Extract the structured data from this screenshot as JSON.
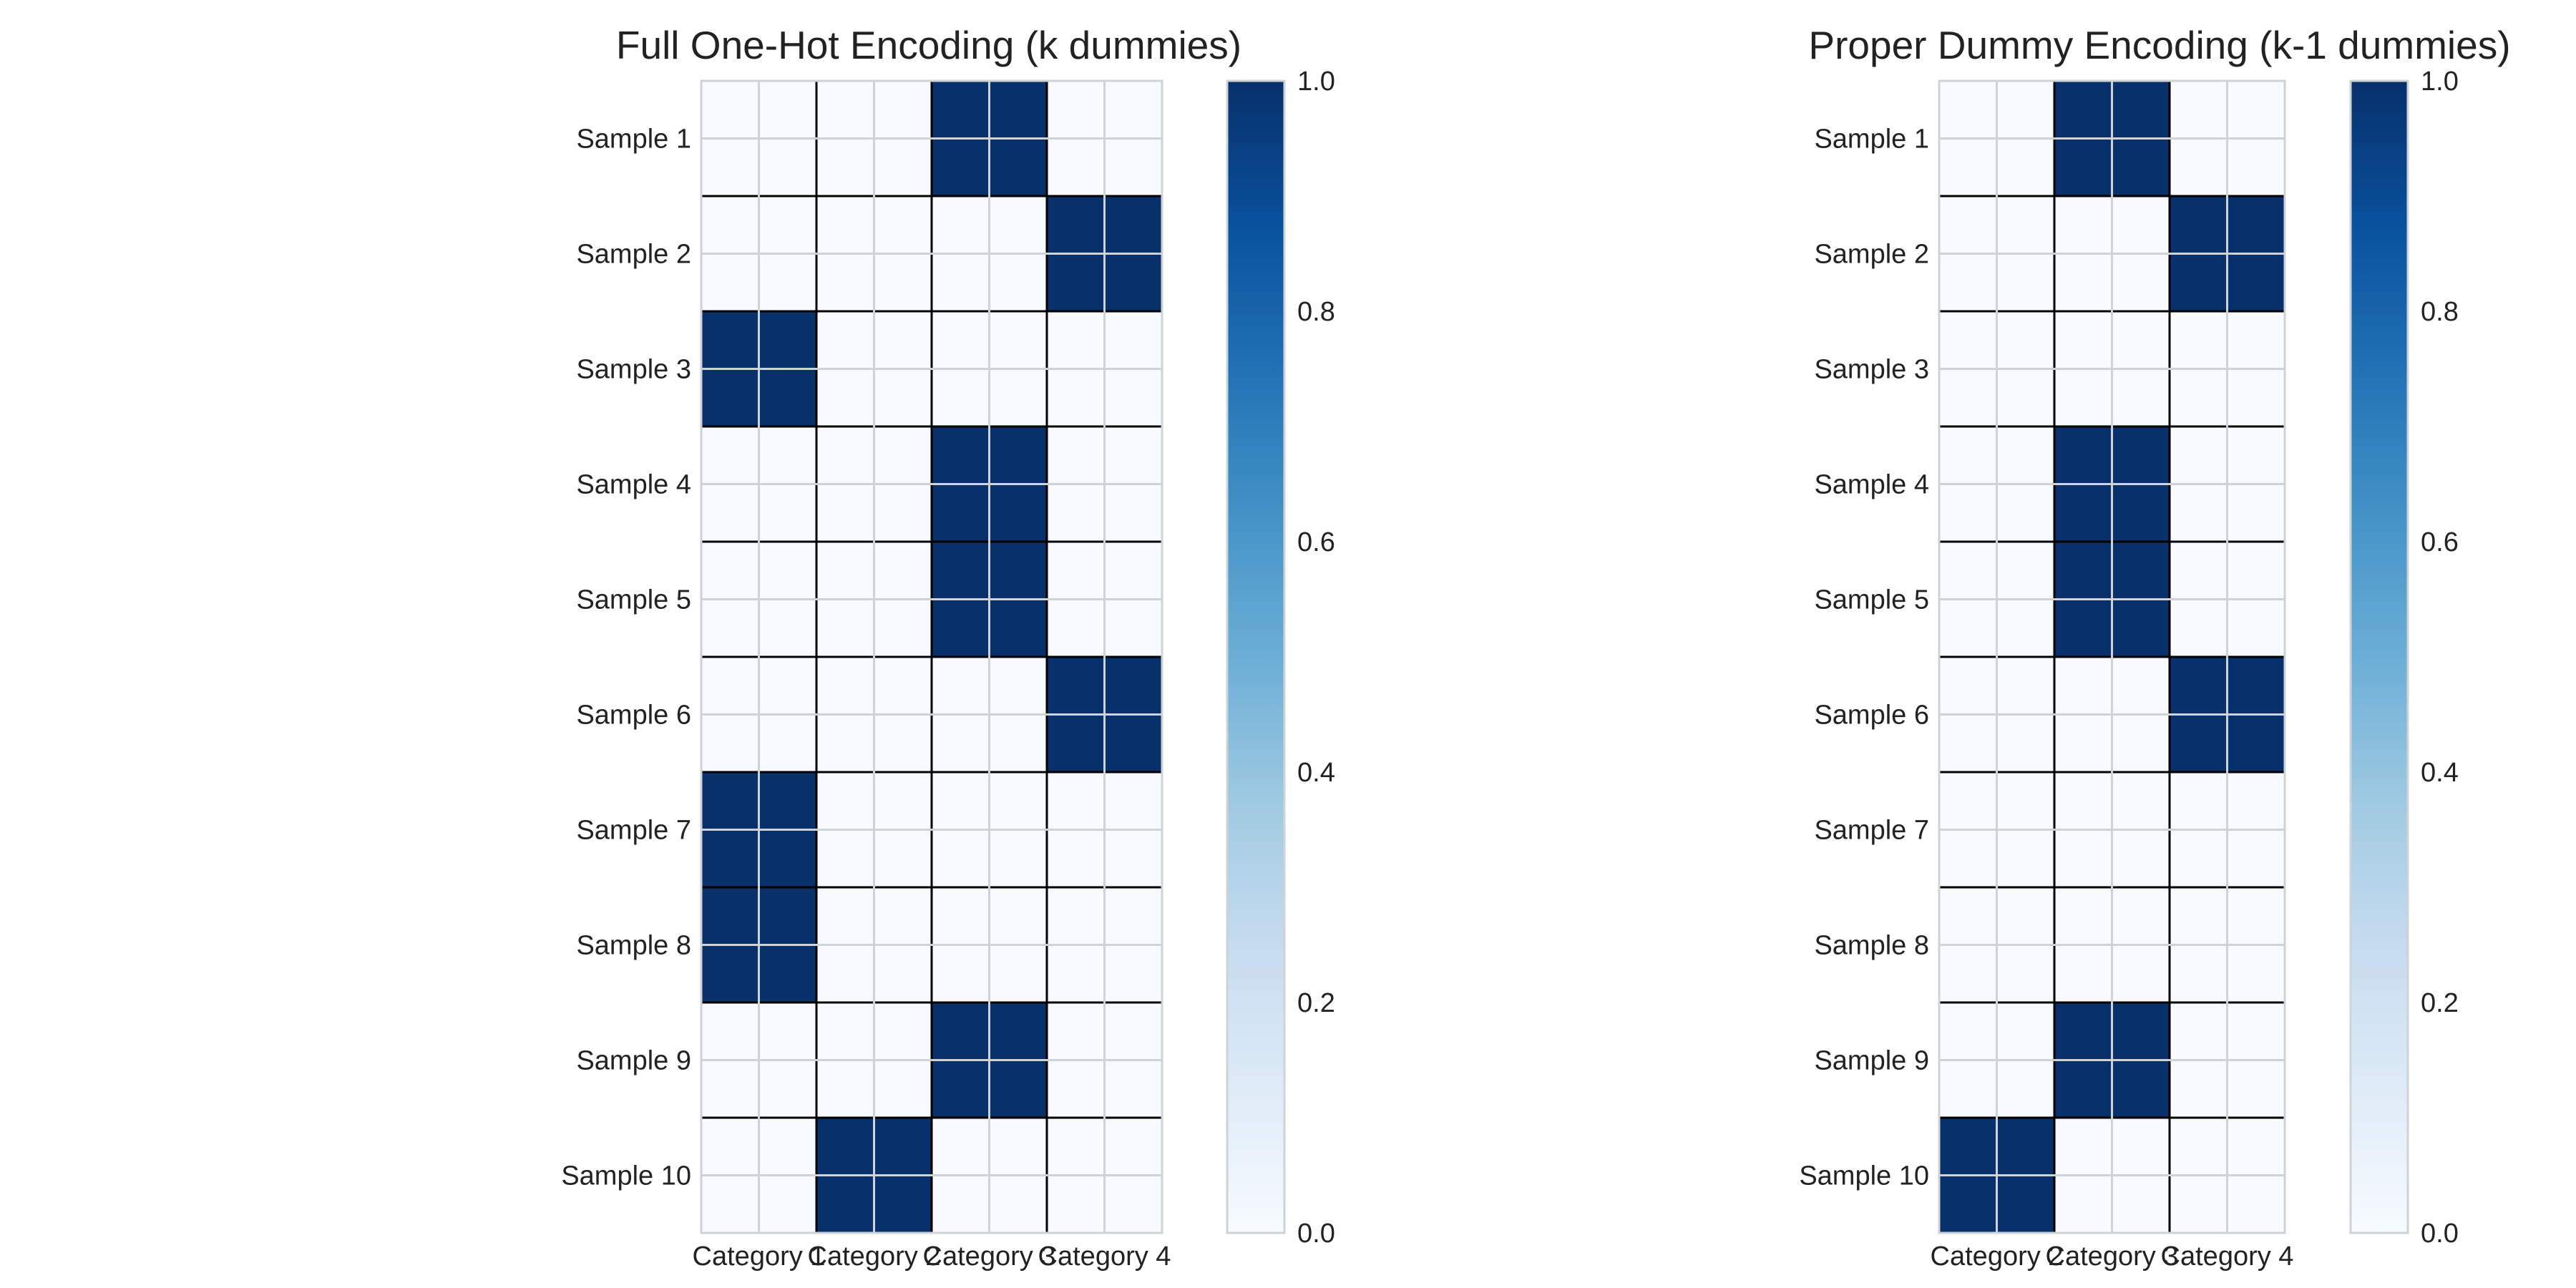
{
  "figure": {
    "background": "#ffffff"
  },
  "chart_data": [
    {
      "type": "heatmap",
      "title": "Full One-Hot Encoding (k dummies)",
      "x_categories": [
        "Category 1",
        "Category 2",
        "Category 3",
        "Category 4"
      ],
      "y_categories": [
        "Sample 1",
        "Sample 2",
        "Sample 3",
        "Sample 4",
        "Sample 5",
        "Sample 6",
        "Sample 7",
        "Sample 8",
        "Sample 9",
        "Sample 10"
      ],
      "values": [
        [
          0,
          0,
          1,
          0
        ],
        [
          0,
          0,
          0,
          1
        ],
        [
          1,
          0,
          0,
          0
        ],
        [
          0,
          0,
          1,
          0
        ],
        [
          0,
          0,
          1,
          0
        ],
        [
          0,
          0,
          0,
          1
        ],
        [
          1,
          0,
          0,
          0
        ],
        [
          1,
          0,
          0,
          0
        ],
        [
          0,
          0,
          1,
          0
        ],
        [
          0,
          1,
          0,
          0
        ]
      ],
      "colormap": "Blues",
      "vmin": 0,
      "vmax": 1,
      "colorbar": {
        "ticks": [
          "0.0",
          "0.2",
          "0.4",
          "0.6",
          "0.8",
          "1.0"
        ]
      },
      "grid": true
    },
    {
      "type": "heatmap",
      "title": "Proper Dummy Encoding (k-1 dummies)",
      "x_categories": [
        "Category 2",
        "Category 3",
        "Category 4"
      ],
      "y_categories": [
        "Sample 1",
        "Sample 2",
        "Sample 3",
        "Sample 4",
        "Sample 5",
        "Sample 6",
        "Sample 7",
        "Sample 8",
        "Sample 9",
        "Sample 10"
      ],
      "values": [
        [
          0,
          1,
          0
        ],
        [
          0,
          0,
          1
        ],
        [
          0,
          0,
          0
        ],
        [
          0,
          1,
          0
        ],
        [
          0,
          1,
          0
        ],
        [
          0,
          0,
          1
        ],
        [
          0,
          0,
          0
        ],
        [
          0,
          0,
          0
        ],
        [
          0,
          1,
          0
        ],
        [
          1,
          0,
          0
        ]
      ],
      "colormap": "Blues",
      "vmin": 0,
      "vmax": 1,
      "colorbar": {
        "ticks": [
          "0.0",
          "0.2",
          "0.4",
          "0.6",
          "0.8",
          "1.0"
        ]
      },
      "grid": true
    }
  ],
  "colors": {
    "low": "#f7fbff",
    "high": "#08306b",
    "cell_border": "#000000",
    "grid_line": "#cfd3d8",
    "frame": "#d0d3d6",
    "text": "#222222"
  }
}
